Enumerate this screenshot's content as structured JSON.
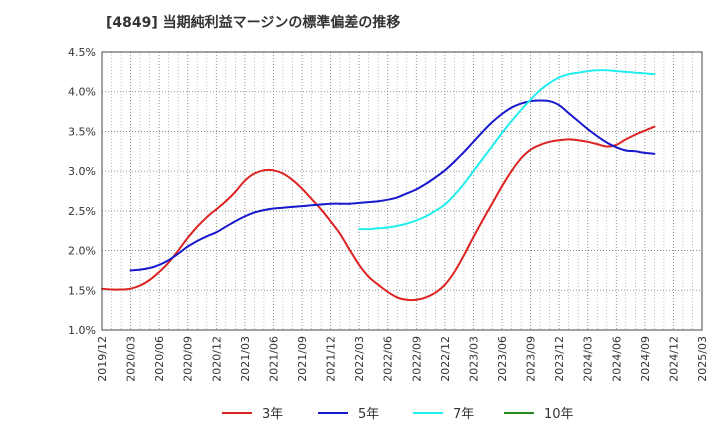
{
  "chart_data": {
    "type": "line",
    "title": "[4849]  当期純利益マージンの標準偏差の推移",
    "xlabel": "",
    "ylabel": "",
    "ylim": [
      1.0,
      4.5
    ],
    "y_ticks": [
      "1.0%",
      "1.5%",
      "2.0%",
      "2.5%",
      "3.0%",
      "3.5%",
      "4.0%",
      "4.5%"
    ],
    "x_ticks": [
      "2019/12",
      "2020/03",
      "2020/06",
      "2020/09",
      "2020/12",
      "2021/03",
      "2021/06",
      "2021/09",
      "2021/12",
      "2022/03",
      "2022/06",
      "2022/09",
      "2022/12",
      "2023/03",
      "2023/06",
      "2023/09",
      "2023/12",
      "2024/03",
      "2024/06",
      "2024/09",
      "2024/12",
      "2025/03"
    ],
    "grid": true,
    "legend_position": "bottom",
    "series": [
      {
        "name": "3年",
        "color": "#dd2222",
        "points": [
          [
            "2019/12",
            1.52
          ],
          [
            "2020/01",
            1.51
          ],
          [
            "2020/02",
            1.51
          ],
          [
            "2020/03",
            1.52
          ],
          [
            "2020/04",
            1.56
          ],
          [
            "2020/05",
            1.63
          ],
          [
            "2020/06",
            1.73
          ],
          [
            "2020/07",
            1.85
          ],
          [
            "2020/08",
            2.0
          ],
          [
            "2020/09",
            2.16
          ],
          [
            "2020/10",
            2.3
          ],
          [
            "2020/11",
            2.42
          ],
          [
            "2020/12",
            2.52
          ],
          [
            "2021/01",
            2.62
          ],
          [
            "2021/02",
            2.74
          ],
          [
            "2021/03",
            2.88
          ],
          [
            "2021/04",
            2.97
          ],
          [
            "2021/05",
            3.01
          ],
          [
            "2021/06",
            3.01
          ],
          [
            "2021/07",
            2.97
          ],
          [
            "2021/08",
            2.89
          ],
          [
            "2021/09",
            2.78
          ],
          [
            "2021/10",
            2.65
          ],
          [
            "2021/11",
            2.52
          ],
          [
            "2021/12",
            2.37
          ],
          [
            "2022/01",
            2.21
          ],
          [
            "2022/02",
            2.01
          ],
          [
            "2022/03",
            1.82
          ],
          [
            "2022/04",
            1.67
          ],
          [
            "2022/05",
            1.57
          ],
          [
            "2022/06",
            1.48
          ],
          [
            "2022/07",
            1.41
          ],
          [
            "2022/08",
            1.38
          ],
          [
            "2022/09",
            1.38
          ],
          [
            "2022/10",
            1.41
          ],
          [
            "2022/11",
            1.47
          ],
          [
            "2022/12",
            1.57
          ],
          [
            "2023/01",
            1.73
          ],
          [
            "2023/02",
            1.94
          ],
          [
            "2023/03",
            2.17
          ],
          [
            "2023/04",
            2.39
          ],
          [
            "2023/05",
            2.6
          ],
          [
            "2023/06",
            2.81
          ],
          [
            "2023/07",
            3.0
          ],
          [
            "2023/08",
            3.16
          ],
          [
            "2023/09",
            3.27
          ],
          [
            "2023/10",
            3.33
          ],
          [
            "2023/11",
            3.37
          ],
          [
            "2023/12",
            3.39
          ],
          [
            "2024/01",
            3.4
          ],
          [
            "2024/02",
            3.39
          ],
          [
            "2024/03",
            3.37
          ],
          [
            "2024/04",
            3.34
          ],
          [
            "2024/05",
            3.31
          ],
          [
            "2024/06",
            3.33
          ],
          [
            "2024/07",
            3.4
          ],
          [
            "2024/08",
            3.46
          ],
          [
            "2024/09",
            3.51
          ],
          [
            "2024/10",
            3.56
          ]
        ]
      },
      {
        "name": "5年",
        "color": "#1818cc",
        "points": [
          [
            "2020/03",
            1.75
          ],
          [
            "2020/04",
            1.76
          ],
          [
            "2020/05",
            1.78
          ],
          [
            "2020/06",
            1.82
          ],
          [
            "2020/07",
            1.88
          ],
          [
            "2020/08",
            1.96
          ],
          [
            "2020/09",
            2.05
          ],
          [
            "2020/10",
            2.12
          ],
          [
            "2020/11",
            2.18
          ],
          [
            "2020/12",
            2.23
          ],
          [
            "2021/01",
            2.3
          ],
          [
            "2021/02",
            2.37
          ],
          [
            "2021/03",
            2.43
          ],
          [
            "2021/04",
            2.48
          ],
          [
            "2021/05",
            2.51
          ],
          [
            "2021/06",
            2.53
          ],
          [
            "2021/07",
            2.54
          ],
          [
            "2021/08",
            2.55
          ],
          [
            "2021/09",
            2.56
          ],
          [
            "2021/10",
            2.57
          ],
          [
            "2021/11",
            2.58
          ],
          [
            "2021/12",
            2.59
          ],
          [
            "2022/01",
            2.59
          ],
          [
            "2022/02",
            2.59
          ],
          [
            "2022/03",
            2.6
          ],
          [
            "2022/04",
            2.61
          ],
          [
            "2022/05",
            2.62
          ],
          [
            "2022/06",
            2.64
          ],
          [
            "2022/07",
            2.67
          ],
          [
            "2022/08",
            2.72
          ],
          [
            "2022/09",
            2.77
          ],
          [
            "2022/10",
            2.84
          ],
          [
            "2022/11",
            2.92
          ],
          [
            "2022/12",
            3.01
          ],
          [
            "2023/01",
            3.12
          ],
          [
            "2023/02",
            3.24
          ],
          [
            "2023/03",
            3.37
          ],
          [
            "2023/04",
            3.5
          ],
          [
            "2023/05",
            3.62
          ],
          [
            "2023/06",
            3.72
          ],
          [
            "2023/07",
            3.8
          ],
          [
            "2023/08",
            3.85
          ],
          [
            "2023/09",
            3.88
          ],
          [
            "2023/10",
            3.89
          ],
          [
            "2023/11",
            3.88
          ],
          [
            "2023/12",
            3.83
          ],
          [
            "2024/01",
            3.73
          ],
          [
            "2024/02",
            3.63
          ],
          [
            "2024/03",
            3.53
          ],
          [
            "2024/04",
            3.44
          ],
          [
            "2024/05",
            3.36
          ],
          [
            "2024/06",
            3.3
          ],
          [
            "2024/07",
            3.26
          ],
          [
            "2024/08",
            3.25
          ],
          [
            "2024/09",
            3.23
          ],
          [
            "2024/10",
            3.22
          ]
        ]
      },
      {
        "name": "7年",
        "color": "#22eeee",
        "points": [
          [
            "2022/03",
            2.27
          ],
          [
            "2022/04",
            2.27
          ],
          [
            "2022/05",
            2.28
          ],
          [
            "2022/06",
            2.29
          ],
          [
            "2022/07",
            2.31
          ],
          [
            "2022/08",
            2.34
          ],
          [
            "2022/09",
            2.38
          ],
          [
            "2022/10",
            2.43
          ],
          [
            "2022/11",
            2.5
          ],
          [
            "2022/12",
            2.58
          ],
          [
            "2023/01",
            2.7
          ],
          [
            "2023/02",
            2.84
          ],
          [
            "2023/03",
            3.0
          ],
          [
            "2023/04",
            3.16
          ],
          [
            "2023/05",
            3.32
          ],
          [
            "2023/06",
            3.48
          ],
          [
            "2023/07",
            3.63
          ],
          [
            "2023/08",
            3.77
          ],
          [
            "2023/09",
            3.9
          ],
          [
            "2023/10",
            4.02
          ],
          [
            "2023/11",
            4.11
          ],
          [
            "2023/12",
            4.18
          ],
          [
            "2024/01",
            4.22
          ],
          [
            "2024/02",
            4.24
          ],
          [
            "2024/03",
            4.26
          ],
          [
            "2024/04",
            4.27
          ],
          [
            "2024/05",
            4.27
          ],
          [
            "2024/06",
            4.26
          ],
          [
            "2024/07",
            4.25
          ],
          [
            "2024/08",
            4.24
          ],
          [
            "2024/09",
            4.23
          ],
          [
            "2024/10",
            4.22
          ]
        ]
      },
      {
        "name": "10年",
        "color": "#228822",
        "points": []
      }
    ]
  }
}
